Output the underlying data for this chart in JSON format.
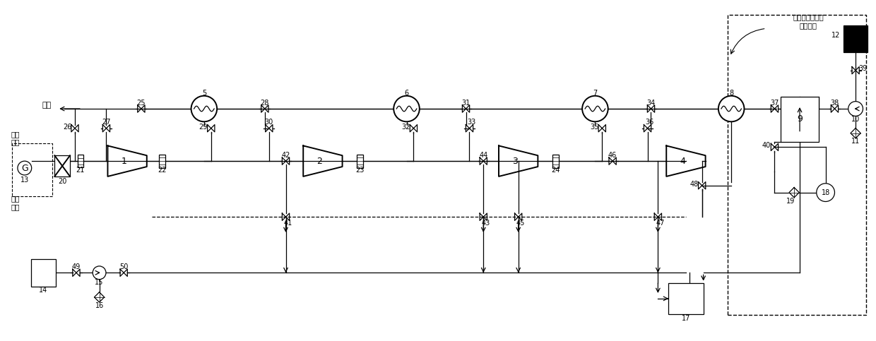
{
  "bg_color": "#ffffff",
  "line_color": "#000000",
  "fig_width": 12.4,
  "fig_height": 4.83,
  "label_atmosphere": "大气",
  "label_expansion_group": "膨胀\n机组",
  "label_generator_group": "发电\n机组",
  "label_liquefied": "液化空气存储及\n气化部分"
}
